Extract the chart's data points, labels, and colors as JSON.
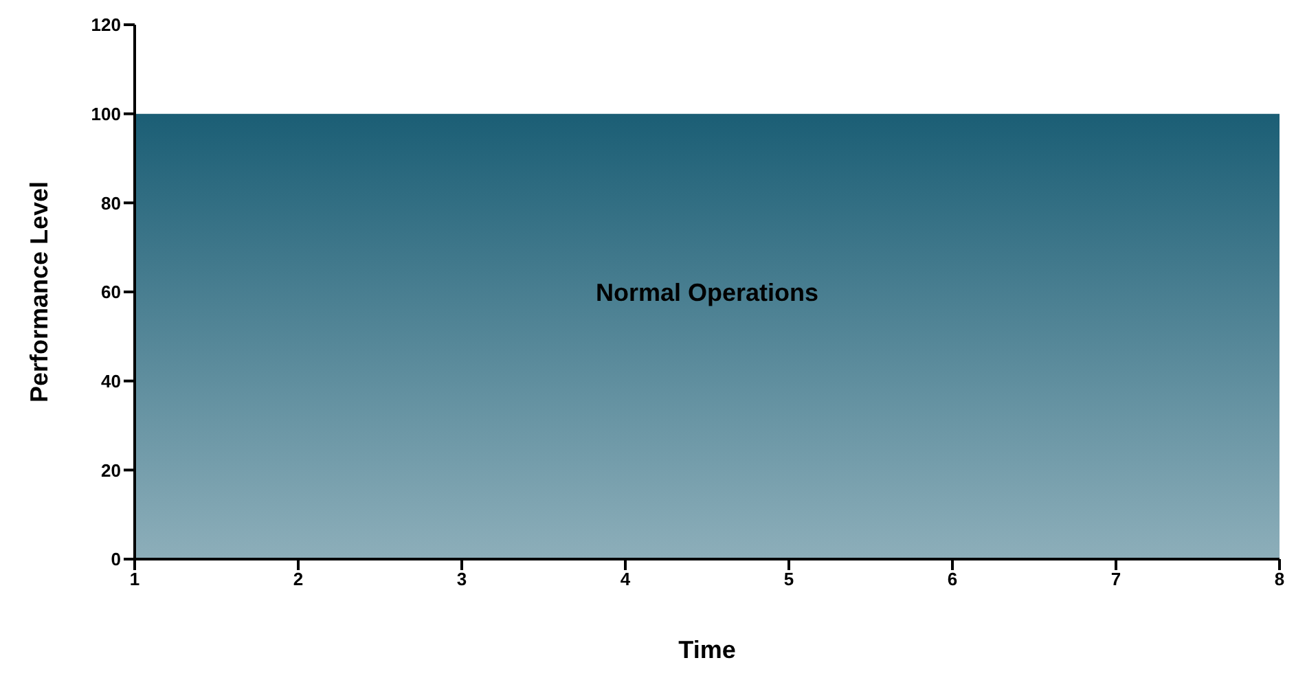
{
  "chart_data": {
    "type": "area",
    "xlabel": "Time",
    "ylabel": "Performance Level",
    "categories": [
      "1",
      "2",
      "3",
      "4",
      "5",
      "6",
      "7",
      "8"
    ],
    "series": [
      {
        "color": "#1b5e75",
        "values": [
          100,
          100,
          100,
          100,
          100,
          100,
          100,
          100
        ]
      }
    ],
    "ylim": [
      0,
      120
    ],
    "yticks": [
      0,
      20,
      40,
      60,
      80,
      100,
      120
    ],
    "grid": false,
    "legend": false,
    "annotations": [
      "Normal Operations"
    ]
  }
}
